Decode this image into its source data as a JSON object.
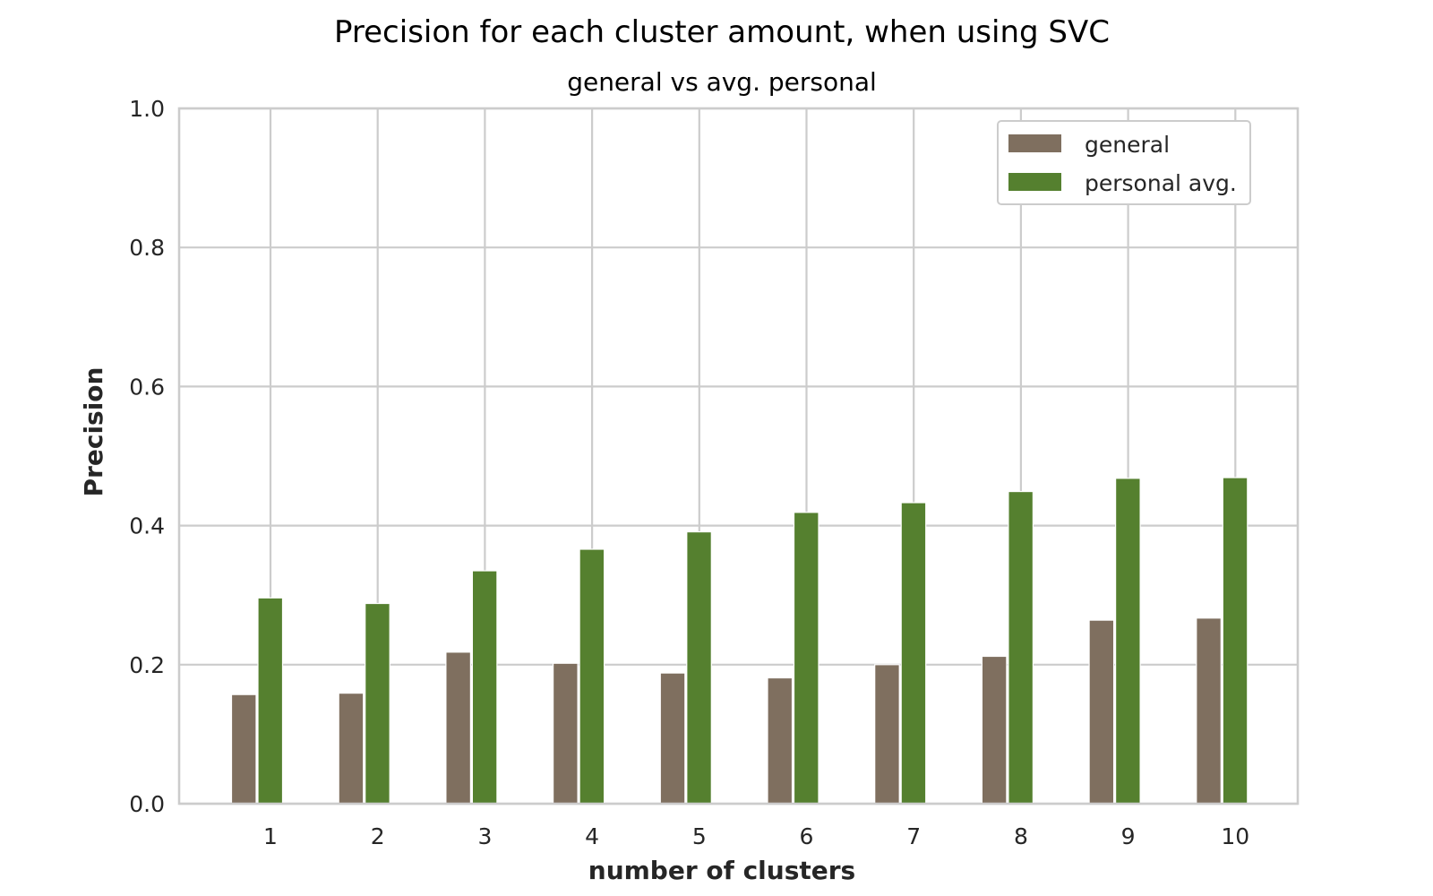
{
  "chart_data": {
    "type": "bar",
    "title": "Precision for each cluster amount, when using SVC",
    "subtitle": "general vs avg. personal",
    "xlabel": "number of clusters",
    "ylabel": "Precision",
    "categories": [
      "1",
      "2",
      "3",
      "4",
      "5",
      "6",
      "7",
      "8",
      "9",
      "10"
    ],
    "ylim": [
      0,
      1.0
    ],
    "yticks": [
      "0.0",
      "0.2",
      "0.4",
      "0.6",
      "0.8",
      "1.0"
    ],
    "grid": true,
    "legend_position": "top-right",
    "series": [
      {
        "name": "general",
        "color": "#7f6f5f",
        "values": [
          0.157,
          0.159,
          0.218,
          0.202,
          0.188,
          0.181,
          0.2,
          0.212,
          0.264,
          0.267
        ]
      },
      {
        "name": "personal avg.",
        "color": "#55802f",
        "values": [
          0.296,
          0.288,
          0.335,
          0.366,
          0.391,
          0.419,
          0.433,
          0.449,
          0.468,
          0.469
        ]
      }
    ]
  }
}
